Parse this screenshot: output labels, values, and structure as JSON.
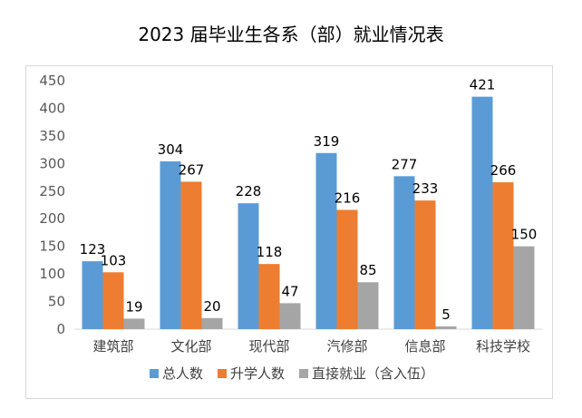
{
  "chart_data": {
    "type": "bar",
    "title": "2023 届毕业生各系（部）就业情况表",
    "categories": [
      "建筑部",
      "文化部",
      "现代部",
      "汽修部",
      "信息部",
      "科技学校"
    ],
    "series": [
      {
        "name": "总人数",
        "values": [
          123,
          304,
          228,
          319,
          277,
          421
        ],
        "color": "#5b9bd5"
      },
      {
        "name": "升学人数",
        "values": [
          103,
          267,
          118,
          216,
          233,
          266
        ],
        "color": "#ed7d31"
      },
      {
        "name": "直接就业（含入伍）",
        "values": [
          19,
          20,
          47,
          85,
          5,
          150
        ],
        "color": "#a5a5a5"
      }
    ],
    "yticks": [
      0,
      50,
      100,
      150,
      200,
      250,
      300,
      350,
      400,
      450
    ],
    "ylim": [
      0,
      450
    ],
    "legend": "bottom",
    "grid": false
  }
}
